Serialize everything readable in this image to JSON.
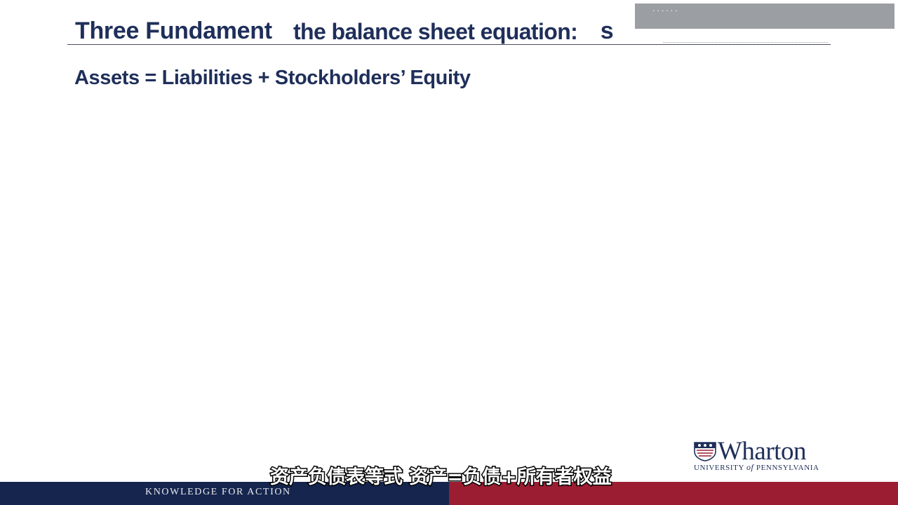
{
  "slide": {
    "title": "Three Fundament",
    "title_end": "s",
    "title_overlay": "the balance sheet equation:",
    "equation": "Assets = Liabilities + Stockholders’ Equity",
    "corner_box_text": "......"
  },
  "branding": {
    "logo_name": "Wharton",
    "logo_sub_1": "UNIVERSITY",
    "logo_sub_of": "of",
    "logo_sub_2": "PENNSYLVANIA",
    "logo_icon": "penn-shield-icon",
    "tagline": "KNOWLEDGE FOR ACTION",
    "navy": "#15254d",
    "red": "#9b1d31"
  },
  "caption": {
    "text": "资产负债表等式 资产=负债+所有者权益"
  }
}
